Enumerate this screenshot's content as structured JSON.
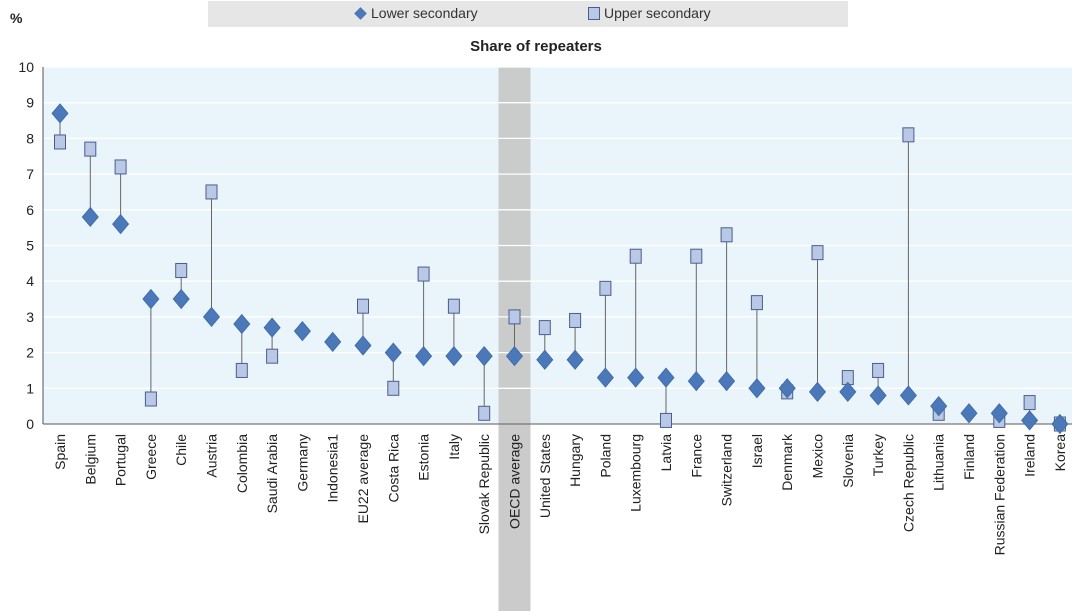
{
  "legend": {
    "lower_label": "Lower secondary",
    "upper_label": "Upper secondary"
  },
  "y_unit": "%",
  "chart_data": {
    "type": "scatter",
    "title": "Share of repeaters",
    "xlabel": "",
    "ylabel": "%",
    "ylim": [
      0,
      10
    ],
    "yticks": [
      0,
      1,
      2,
      3,
      4,
      5,
      6,
      7,
      8,
      9,
      10
    ],
    "grid": true,
    "legend_position": "top",
    "highlight_category": "OECD average",
    "categories": [
      "Spain",
      "Belgium",
      "Portugal",
      "Greece",
      "Chile",
      "Austria",
      "Colombia",
      "Saudi Arabia",
      "Germany",
      "Indonesia1",
      "EU22 average",
      "Costa Rica",
      "Estonia",
      "Italy",
      "Slovak Republic",
      "OECD average",
      "United States",
      "Hungary",
      "Poland",
      "Luxembourg",
      "Latvia",
      "France",
      "Switzerland",
      "Israel",
      "Denmark",
      "Mexico",
      "Slovenia",
      "Turkey",
      "Czech Republic",
      "Lithuania",
      "Finland",
      "Russian Federation",
      "Ireland",
      "Korea"
    ],
    "series": [
      {
        "name": "Lower secondary",
        "marker": "diamond",
        "color": "#4a78b8",
        "values": [
          8.7,
          5.8,
          5.6,
          3.5,
          3.5,
          3.0,
          2.8,
          2.7,
          2.6,
          2.3,
          2.2,
          2.0,
          1.9,
          1.9,
          1.9,
          1.9,
          1.8,
          1.8,
          1.3,
          1.3,
          1.3,
          1.2,
          1.2,
          1.0,
          1.0,
          0.9,
          0.9,
          0.8,
          0.8,
          0.5,
          0.3,
          0.3,
          0.1,
          0.0
        ]
      },
      {
        "name": "Upper secondary",
        "marker": "square",
        "color": "#b8c8e6",
        "values": [
          7.9,
          7.7,
          7.2,
          0.7,
          4.3,
          6.5,
          1.5,
          1.9,
          null,
          null,
          3.3,
          1.0,
          4.2,
          3.3,
          0.3,
          3.0,
          2.7,
          2.9,
          3.8,
          4.7,
          0.1,
          4.7,
          5.3,
          3.4,
          0.9,
          4.8,
          1.3,
          1.5,
          8.1,
          0.3,
          null,
          0.1,
          0.6,
          0.0
        ]
      }
    ]
  }
}
